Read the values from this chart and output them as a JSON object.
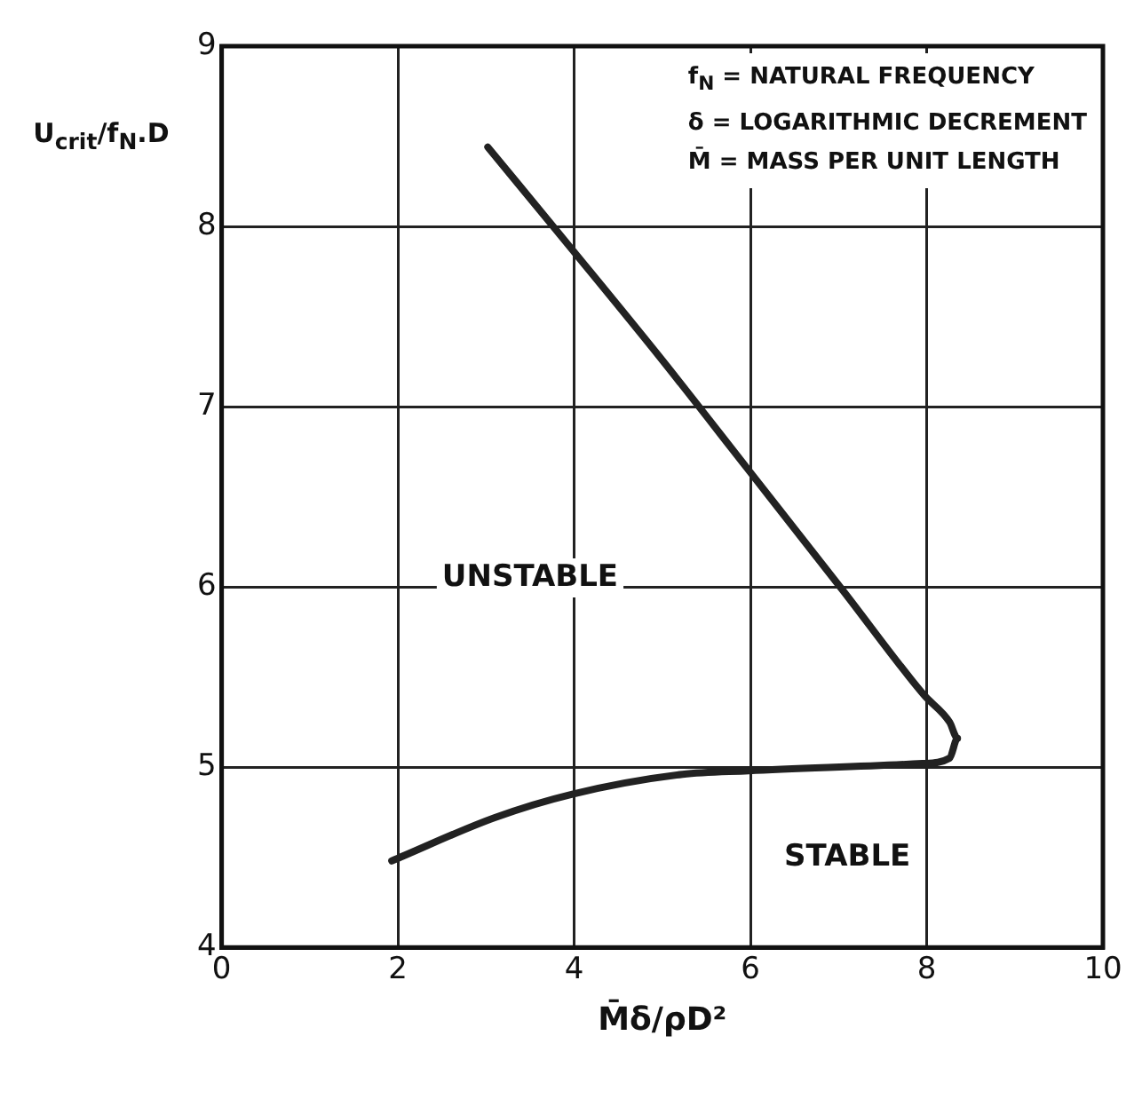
{
  "chart_data": {
    "type": "line",
    "xlabel": "M̄δ/ρD²",
    "ylabel": "U$_{crit}$/f$_{N}$.D",
    "series": [
      {
        "color": "#222222",
        "x": [
          3.02,
          3.98,
          4.98,
          5.96,
          7.05,
          7.97,
          8.26,
          8.35,
          8.26,
          7.95,
          5.98,
          5.23,
          3.98,
          3.1,
          1.93
        ],
        "values": [
          8.44,
          7.87,
          7.27,
          6.66,
          5.98,
          5.4,
          5.25,
          5.16,
          5.05,
          5.02,
          4.98,
          4.96,
          4.85,
          4.72,
          4.48
        ]
      }
    ],
    "annotations": [
      "UNSTABLE",
      "STABLE",
      "f$_{N}$ = NATURAL FREQUENCY",
      "δ = LOGARITHMIC DECREMENT",
      "M̄ = MASS PER UNIT LENGTH"
    ],
    "xlim": [
      0,
      10
    ],
    "xticks": [
      0,
      2,
      4,
      6,
      8,
      10
    ],
    "ylim": [
      4,
      9
    ],
    "yticks": [
      4,
      5,
      6,
      7,
      8,
      9
    ],
    "grid": true,
    "marker": "none",
    "line_style": "solid",
    "legend": false
  }
}
